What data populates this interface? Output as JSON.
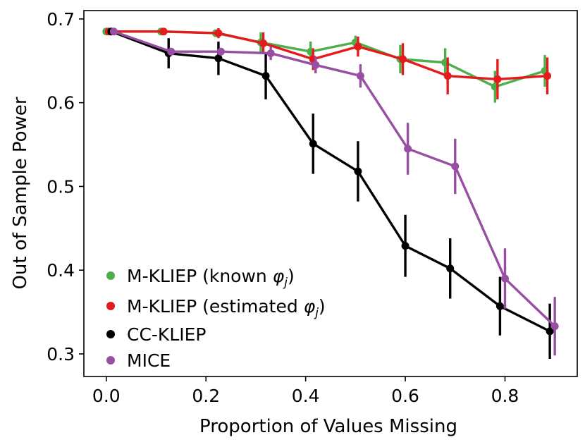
{
  "chart_data": {
    "type": "line",
    "title": "",
    "xlabel": "Proportion of Values Missing",
    "ylabel": "Out of Sample Power",
    "xlim": [
      -0.045,
      0.945
    ],
    "ylim": [
      0.273,
      0.71
    ],
    "xticks": [
      0.0,
      0.2,
      0.4,
      0.6,
      0.8
    ],
    "xtick_labels": [
      "0.0",
      "0.2",
      "0.4",
      "0.6",
      "0.8"
    ],
    "yticks": [
      0.3,
      0.4,
      0.5,
      0.6,
      0.7
    ],
    "ytick_labels": [
      "0.3",
      "0.4",
      "0.5",
      "0.6",
      "0.7"
    ],
    "grid": false,
    "legend_position": "lower-left",
    "series": [
      {
        "name": "M-KLIEP (known φj)",
        "label_main": "M-KLIEP (known ",
        "label_sym": "φ",
        "label_sub": "j",
        "label_end": ")",
        "color": "#4daf4a",
        "x": [
          0.0,
          0.11,
          0.22,
          0.31,
          0.41,
          0.5,
          0.59,
          0.68,
          0.78,
          0.88
        ],
        "y": [
          0.685,
          0.685,
          0.683,
          0.672,
          0.661,
          0.672,
          0.652,
          0.648,
          0.619,
          0.638
        ],
        "err": [
          0.0,
          0.0,
          0.004,
          0.012,
          0.012,
          0.008,
          0.017,
          0.017,
          0.019,
          0.019
        ]
      },
      {
        "name": "M-KLIEP (estimated φj)",
        "label_main": "M-KLIEP (estimated ",
        "label_sym": "φ",
        "label_sub": "j",
        "label_end": ")",
        "color": "#e41a1c",
        "x": [
          0.005,
          0.115,
          0.225,
          0.315,
          0.415,
          0.505,
          0.595,
          0.685,
          0.785,
          0.885
        ],
        "y": [
          0.685,
          0.685,
          0.683,
          0.671,
          0.652,
          0.667,
          0.652,
          0.632,
          0.628,
          0.632
        ],
        "err": [
          0.0,
          0.0,
          0.006,
          0.013,
          0.013,
          0.012,
          0.019,
          0.022,
          0.024,
          0.022
        ]
      },
      {
        "name": "CC-KLIEP",
        "label_main": "CC-KLIEP",
        "color": "#000000",
        "x": [
          0.01,
          0.125,
          0.225,
          0.32,
          0.415,
          0.505,
          0.6,
          0.69,
          0.79,
          0.89
        ],
        "y": [
          0.685,
          0.659,
          0.653,
          0.632,
          0.551,
          0.518,
          0.429,
          0.402,
          0.357,
          0.327
        ],
        "err": [
          0.0,
          0.018,
          0.02,
          0.028,
          0.036,
          0.036,
          0.037,
          0.036,
          0.035,
          0.033
        ]
      },
      {
        "name": "MICE",
        "label_main": "MICE",
        "color": "#984ea3",
        "x": [
          0.015,
          0.13,
          0.23,
          0.33,
          0.42,
          0.51,
          0.605,
          0.7,
          0.8,
          0.9
        ],
        "y": [
          0.685,
          0.661,
          0.661,
          0.659,
          0.645,
          0.632,
          0.545,
          0.524,
          0.39,
          0.333
        ],
        "err": [
          0.0,
          0.0,
          0.003,
          0.008,
          0.01,
          0.014,
          0.031,
          0.033,
          0.036,
          0.035
        ]
      }
    ]
  }
}
